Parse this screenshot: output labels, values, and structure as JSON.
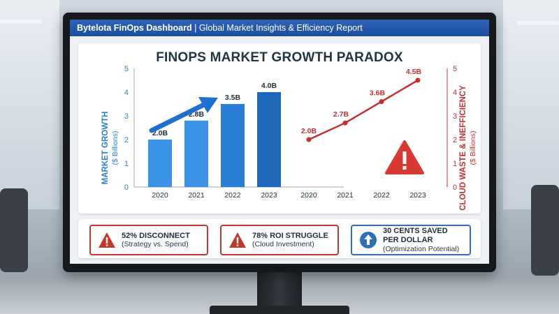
{
  "header": {
    "app_name": "Bytelota FinOps Dashboard",
    "separator": "|",
    "subtitle": "Global Market Insights & Efficiency Report"
  },
  "chart_title": "FINOPS MARKET GROWTH PARADOX",
  "chart_data": [
    {
      "type": "bar",
      "categories": [
        "2020",
        "2021",
        "2022",
        "2023"
      ],
      "values": [
        2.0,
        2.8,
        3.5,
        4.0
      ],
      "data_labels": [
        "2.0B",
        "2.8B",
        "3.5B",
        "4.0B"
      ],
      "ylabel": "MARKET GROWTH",
      "ylabel_sub": "($ Billions)",
      "ylim": [
        0,
        5
      ],
      "yticks": [
        "0",
        "1",
        "2",
        "3",
        "4",
        "5"
      ],
      "color": "#2a7fd4",
      "trend_arrow": "up"
    },
    {
      "type": "line",
      "categories": [
        "2020",
        "2021",
        "2022",
        "2023"
      ],
      "values": [
        2.0,
        2.7,
        3.6,
        4.5
      ],
      "data_labels": [
        "2.0B",
        "2.7B",
        "3.6B",
        "4.5B"
      ],
      "ylabel": "CLOUD WASTE & INEFFICIENCY",
      "ylabel_sub": "($ Billions)",
      "ylim": [
        0,
        5
      ],
      "yticks": [
        "0",
        "1",
        "2",
        "3",
        "4",
        "5"
      ],
      "color": "#c62f2f",
      "warning_icon": "warning-triangle"
    }
  ],
  "cards": [
    {
      "icon": "warning-triangle",
      "title": "52% DISCONNECT",
      "sub": "(Strategy vs. Spend)",
      "color": "#c0392b"
    },
    {
      "icon": "warning-triangle",
      "title": "78% ROI STRUGGLE",
      "sub": "(Cloud Investment)",
      "color": "#c0392b"
    },
    {
      "icon": "arrow-up-circle",
      "title": "30 CENTS SAVED",
      "title2": "PER DOLLAR",
      "sub": "(Optimization Potential)",
      "color": "#2f6fb5"
    }
  ]
}
